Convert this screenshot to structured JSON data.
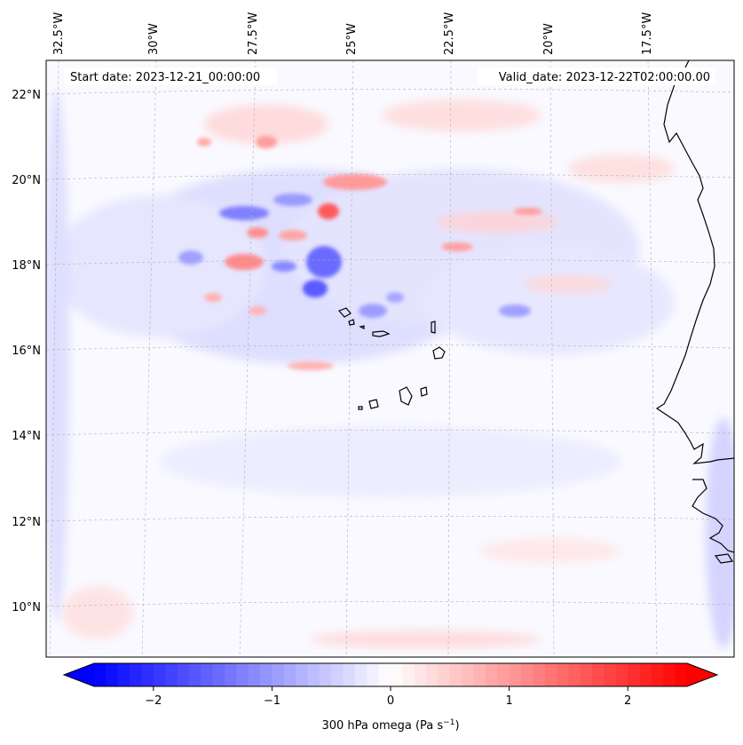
{
  "map": {
    "title_left": "Start date: 2023-12-21_00:00:00",
    "title_right": "Valid_date: 2023-12-22T02:00:00.00",
    "lon_labels": [
      "32.5°W",
      "30°W",
      "27.5°W",
      "25°W",
      "22.5°W",
      "20°W",
      "17.5°W"
    ],
    "lat_labels": [
      "22°N",
      "20°N",
      "18°N",
      "16°N",
      "14°N",
      "12°N",
      "10°N"
    ],
    "colorbar": {
      "label": "300 hPa omega (Pa s",
      "label_sup": "−1",
      "label_end": ")",
      "ticks": [
        "−2",
        "−1",
        "0",
        "1",
        "2"
      ],
      "tick_values": [
        -2,
        -1,
        0,
        1,
        2
      ],
      "range": [
        -2.5,
        2.5
      ],
      "colors": {
        "min": "#0000ff",
        "mid": "#ffffff",
        "max": "#ff0000"
      }
    },
    "colors": {
      "coastline": "#000000",
      "grid": "#b0b0b0"
    }
  }
}
